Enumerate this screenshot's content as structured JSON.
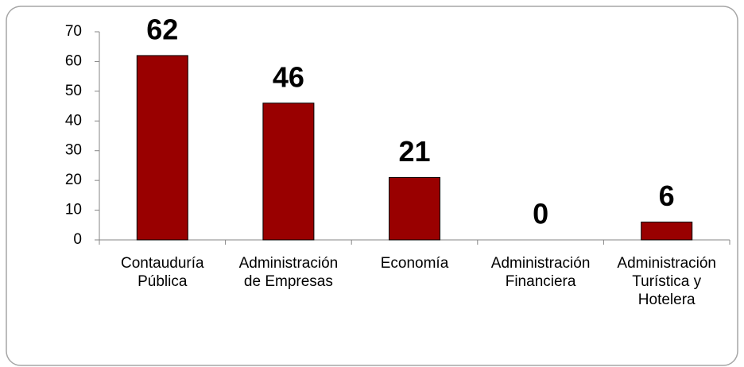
{
  "chart_data": {
    "type": "bar",
    "categories": [
      "Contauduría\nPública",
      "Administración\nde Empresas",
      "Economía",
      "Administración\nFinanciera",
      "Administración\nTurística y\nHotelera"
    ],
    "values": [
      62,
      46,
      21,
      0,
      6
    ],
    "color": "#990000",
    "ylim": [
      0,
      70
    ],
    "yticks": [
      0,
      10,
      20,
      30,
      40,
      50,
      60,
      70
    ],
    "grid": false
  }
}
